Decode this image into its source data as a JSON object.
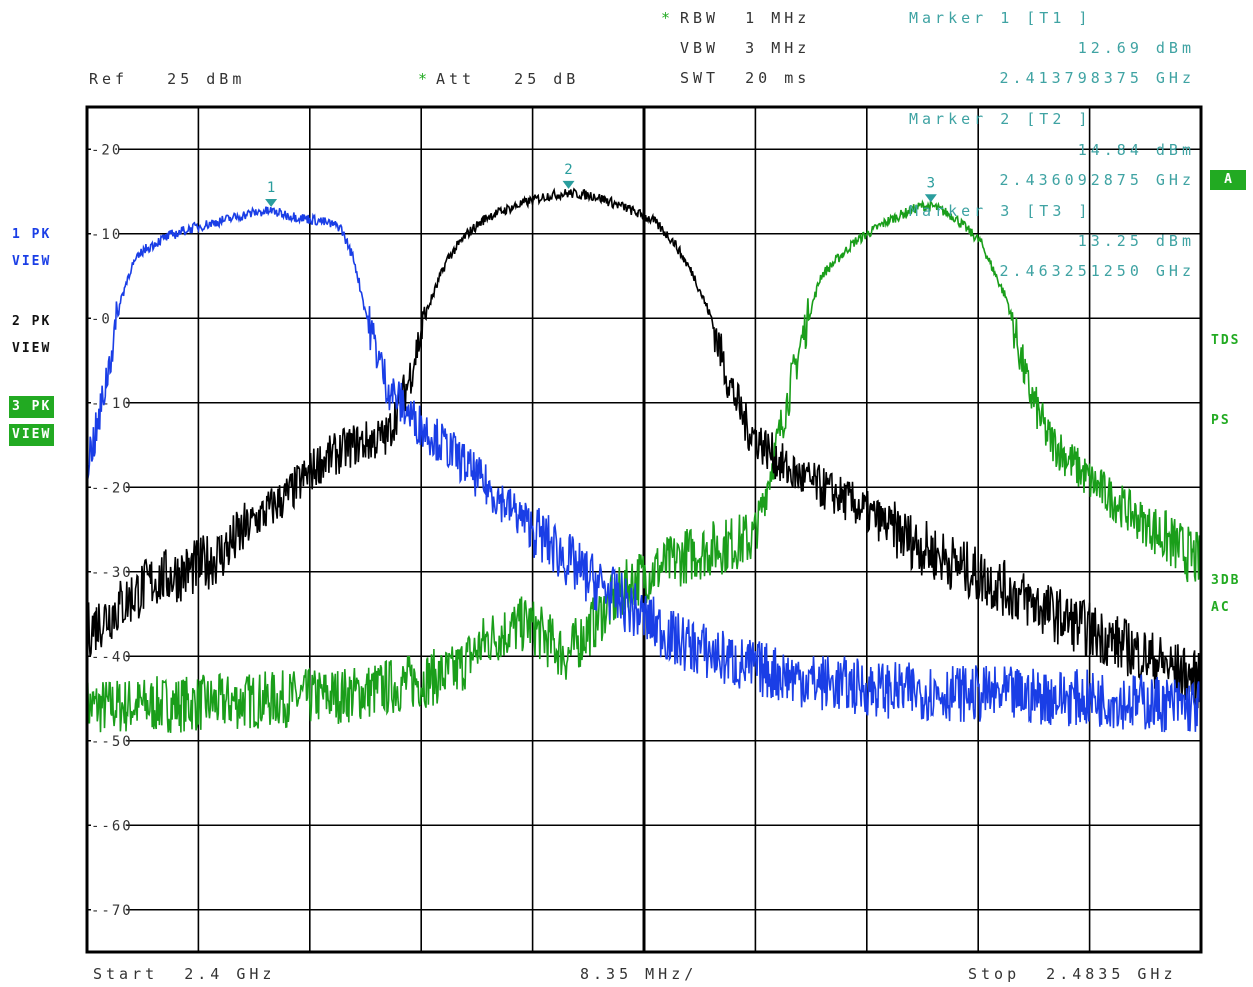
{
  "header": {
    "rbw_star": "*",
    "rbw": "RBW  1 MHz",
    "vbw": "VBW  3 MHz",
    "swt": "SWT  20 ms",
    "ref": "Ref   25 dBm",
    "att_star": "*",
    "att": "Att   25 dB",
    "marker1_title": "Marker 1 [T1 ]",
    "marker1_level": "12.69 dBm",
    "marker1_freq": "2.413798375 GHz",
    "marker2_title": "Marker 2 [T2 ]",
    "marker2_level": "14.84 dBm",
    "marker2_freq": "2.436092875 GHz",
    "marker3_title": "Marker 3 [T3 ]",
    "marker3_level": "13.25 dBm",
    "marker3_freq": "2.463251250 GHz"
  },
  "footer": {
    "start": "Start  2.4 GHz",
    "span_per_div": "8.35 MHz/",
    "stop": "Stop  2.4835 GHz"
  },
  "left_labels": {
    "t1_mode": "1 PK",
    "t1_view": "VIEW",
    "t2_mode": "2 PK",
    "t2_view": "VIEW",
    "t3_mode": "3 PK",
    "t3_view": "VIEW"
  },
  "right_labels": {
    "a": "A",
    "tds": "TDS",
    "ps": "PS",
    "db3": "3DB",
    "ac": "AC"
  },
  "colors": {
    "trace1": "#1a3ee6",
    "trace2": "#000000",
    "trace3": "#1a9e1a",
    "marker": "#2a9d9d",
    "status_green": "#22aa22"
  },
  "chart_data": {
    "type": "line",
    "xlim": [
      2.4,
      2.4835
    ],
    "ylim": [
      -75,
      25
    ],
    "yticks": [
      20,
      10,
      0,
      -10,
      -20,
      -30,
      -40,
      -50,
      -60,
      -70
    ],
    "grid": true,
    "x_unit": "GHz",
    "y_unit": "dBm",
    "series": [
      {
        "name": "1 PK",
        "x": [
          2.4,
          2.4008,
          2.4017,
          2.4025,
          2.4033,
          2.4042,
          2.4058,
          2.4075,
          2.41,
          2.4125,
          2.4138,
          2.415,
          2.4175,
          2.419,
          2.42,
          2.421,
          2.4225,
          2.4245,
          2.4275,
          2.43,
          2.4335,
          2.437,
          2.4405,
          2.444,
          2.449,
          2.4545,
          2.46,
          2.467,
          2.4755,
          2.4835
        ],
        "values": [
          -17,
          -13,
          -5,
          2,
          6,
          8,
          9.5,
          10.5,
          11.5,
          12.5,
          12.7,
          12.2,
          11.5,
          10.8,
          7,
          0,
          -8,
          -12,
          -16,
          -20,
          -25,
          -30,
          -34,
          -38,
          -41,
          -43,
          -44,
          -44.5,
          -45,
          -46
        ]
      },
      {
        "name": "2 PK",
        "x": [
          2.4,
          2.4025,
          2.405,
          2.4075,
          2.41,
          2.4125,
          2.415,
          2.4175,
          2.42,
          2.4225,
          2.424,
          2.4255,
          2.427,
          2.4285,
          2.43,
          2.4325,
          2.4345,
          2.4361,
          2.438,
          2.4405,
          2.4425,
          2.444,
          2.4455,
          2.4468,
          2.448,
          2.4495,
          2.4525,
          2.4575,
          2.4625,
          2.4675,
          2.4725,
          2.478,
          2.4835
        ],
        "values": [
          -37,
          -34,
          -31,
          -30,
          -28,
          -24,
          -21,
          -17,
          -15,
          -14,
          -8,
          1,
          7,
          10,
          12,
          13.5,
          14.5,
          14.8,
          14.5,
          13,
          11.5,
          9,
          5,
          0,
          -7,
          -13,
          -18,
          -22,
          -27,
          -31,
          -35,
          -39,
          -43
        ]
      },
      {
        "name": "3 PK",
        "x": [
          2.4,
          2.41,
          2.42,
          2.4275,
          2.43,
          2.433,
          2.436,
          2.4385,
          2.441,
          2.445,
          2.45,
          2.4505,
          2.452,
          2.4535,
          2.455,
          2.4575,
          2.46,
          2.4625,
          2.4635,
          2.465,
          2.467,
          2.469,
          2.4705,
          2.472,
          2.475,
          2.479,
          2.4835
        ],
        "values": [
          -46,
          -45.5,
          -44.5,
          -42,
          -38,
          -36,
          -40,
          -35,
          -31,
          -28,
          -26,
          -23,
          -13,
          -3,
          5,
          9,
          11.5,
          13.3,
          13.2,
          12,
          9,
          2,
          -8,
          -14,
          -19,
          -24,
          -29
        ]
      }
    ],
    "markers": [
      {
        "label": "1",
        "x": 2.413798375,
        "y": 12.69
      },
      {
        "label": "2",
        "x": 2.436092875,
        "y": 14.84
      },
      {
        "label": "3",
        "x": 2.46325125,
        "y": 13.25
      }
    ]
  }
}
